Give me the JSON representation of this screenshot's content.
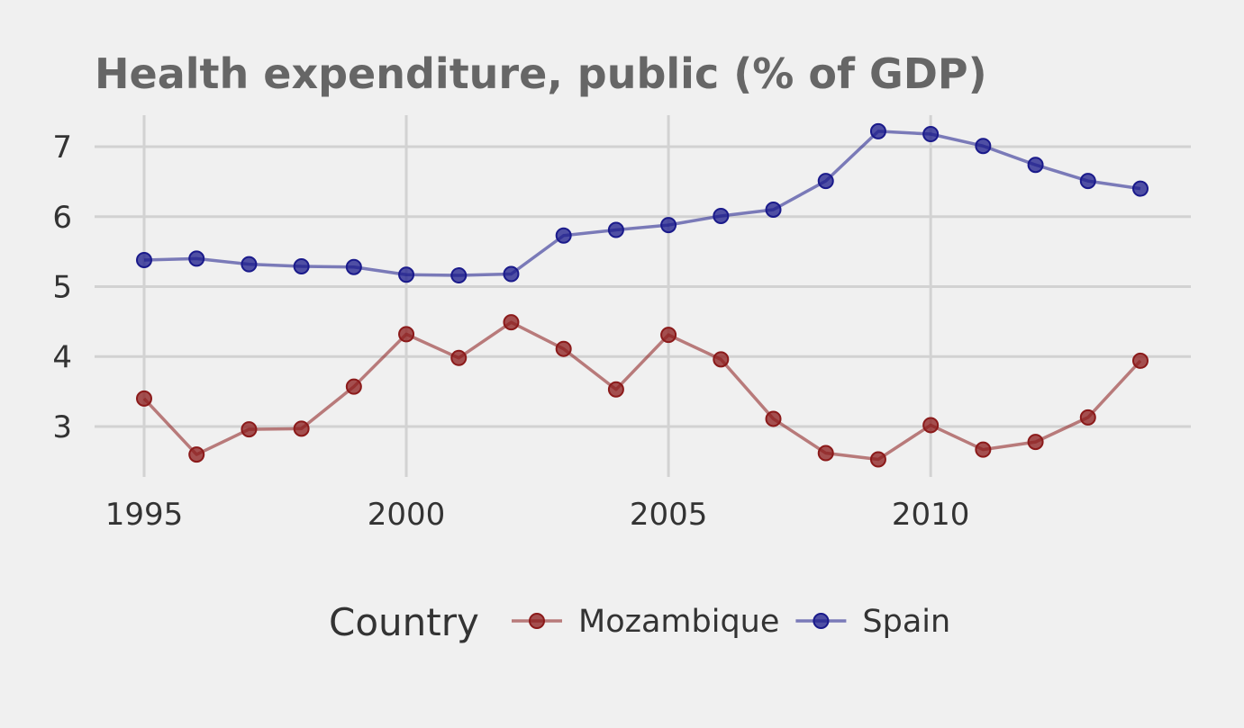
{
  "chart_data": {
    "type": "line",
    "title": "Health expenditure, public (% of GDP)",
    "xlabel": "",
    "ylabel": "",
    "xlim": [
      1994.85,
      2014.85
    ],
    "ylim": [
      2.3,
      7.5
    ],
    "x_ticks": [
      1995,
      2000,
      2005,
      2010
    ],
    "y_ticks": [
      3,
      4,
      5,
      6,
      7
    ],
    "x_tick_labels": [
      "1995",
      "2000",
      "2005",
      "2010"
    ],
    "y_tick_labels": [
      "3",
      "4",
      "5",
      "6",
      "7"
    ],
    "grid": true,
    "legend": {
      "title": "Country",
      "position": "bottom"
    },
    "x": [
      1995,
      1996,
      1997,
      1998,
      1999,
      2000,
      2001,
      2002,
      2003,
      2004,
      2005,
      2006,
      2007,
      2008,
      2009,
      2010,
      2011,
      2012,
      2013,
      2014
    ],
    "series": [
      {
        "name": "Mozambique",
        "color": "#8b1a1a",
        "values": [
          3.4,
          2.6,
          2.96,
          2.97,
          3.57,
          4.32,
          3.98,
          4.49,
          4.11,
          3.53,
          4.31,
          3.96,
          3.11,
          2.62,
          2.53,
          3.02,
          2.67,
          2.78,
          3.13,
          3.94
        ]
      },
      {
        "name": "Spain",
        "color": "#1a1a8b",
        "values": [
          5.38,
          5.4,
          5.32,
          5.29,
          5.28,
          5.17,
          5.16,
          5.18,
          5.73,
          5.81,
          5.88,
          6.01,
          6.1,
          6.51,
          7.22,
          7.18,
          7.01,
          6.74,
          6.51,
          6.4
        ]
      }
    ]
  }
}
